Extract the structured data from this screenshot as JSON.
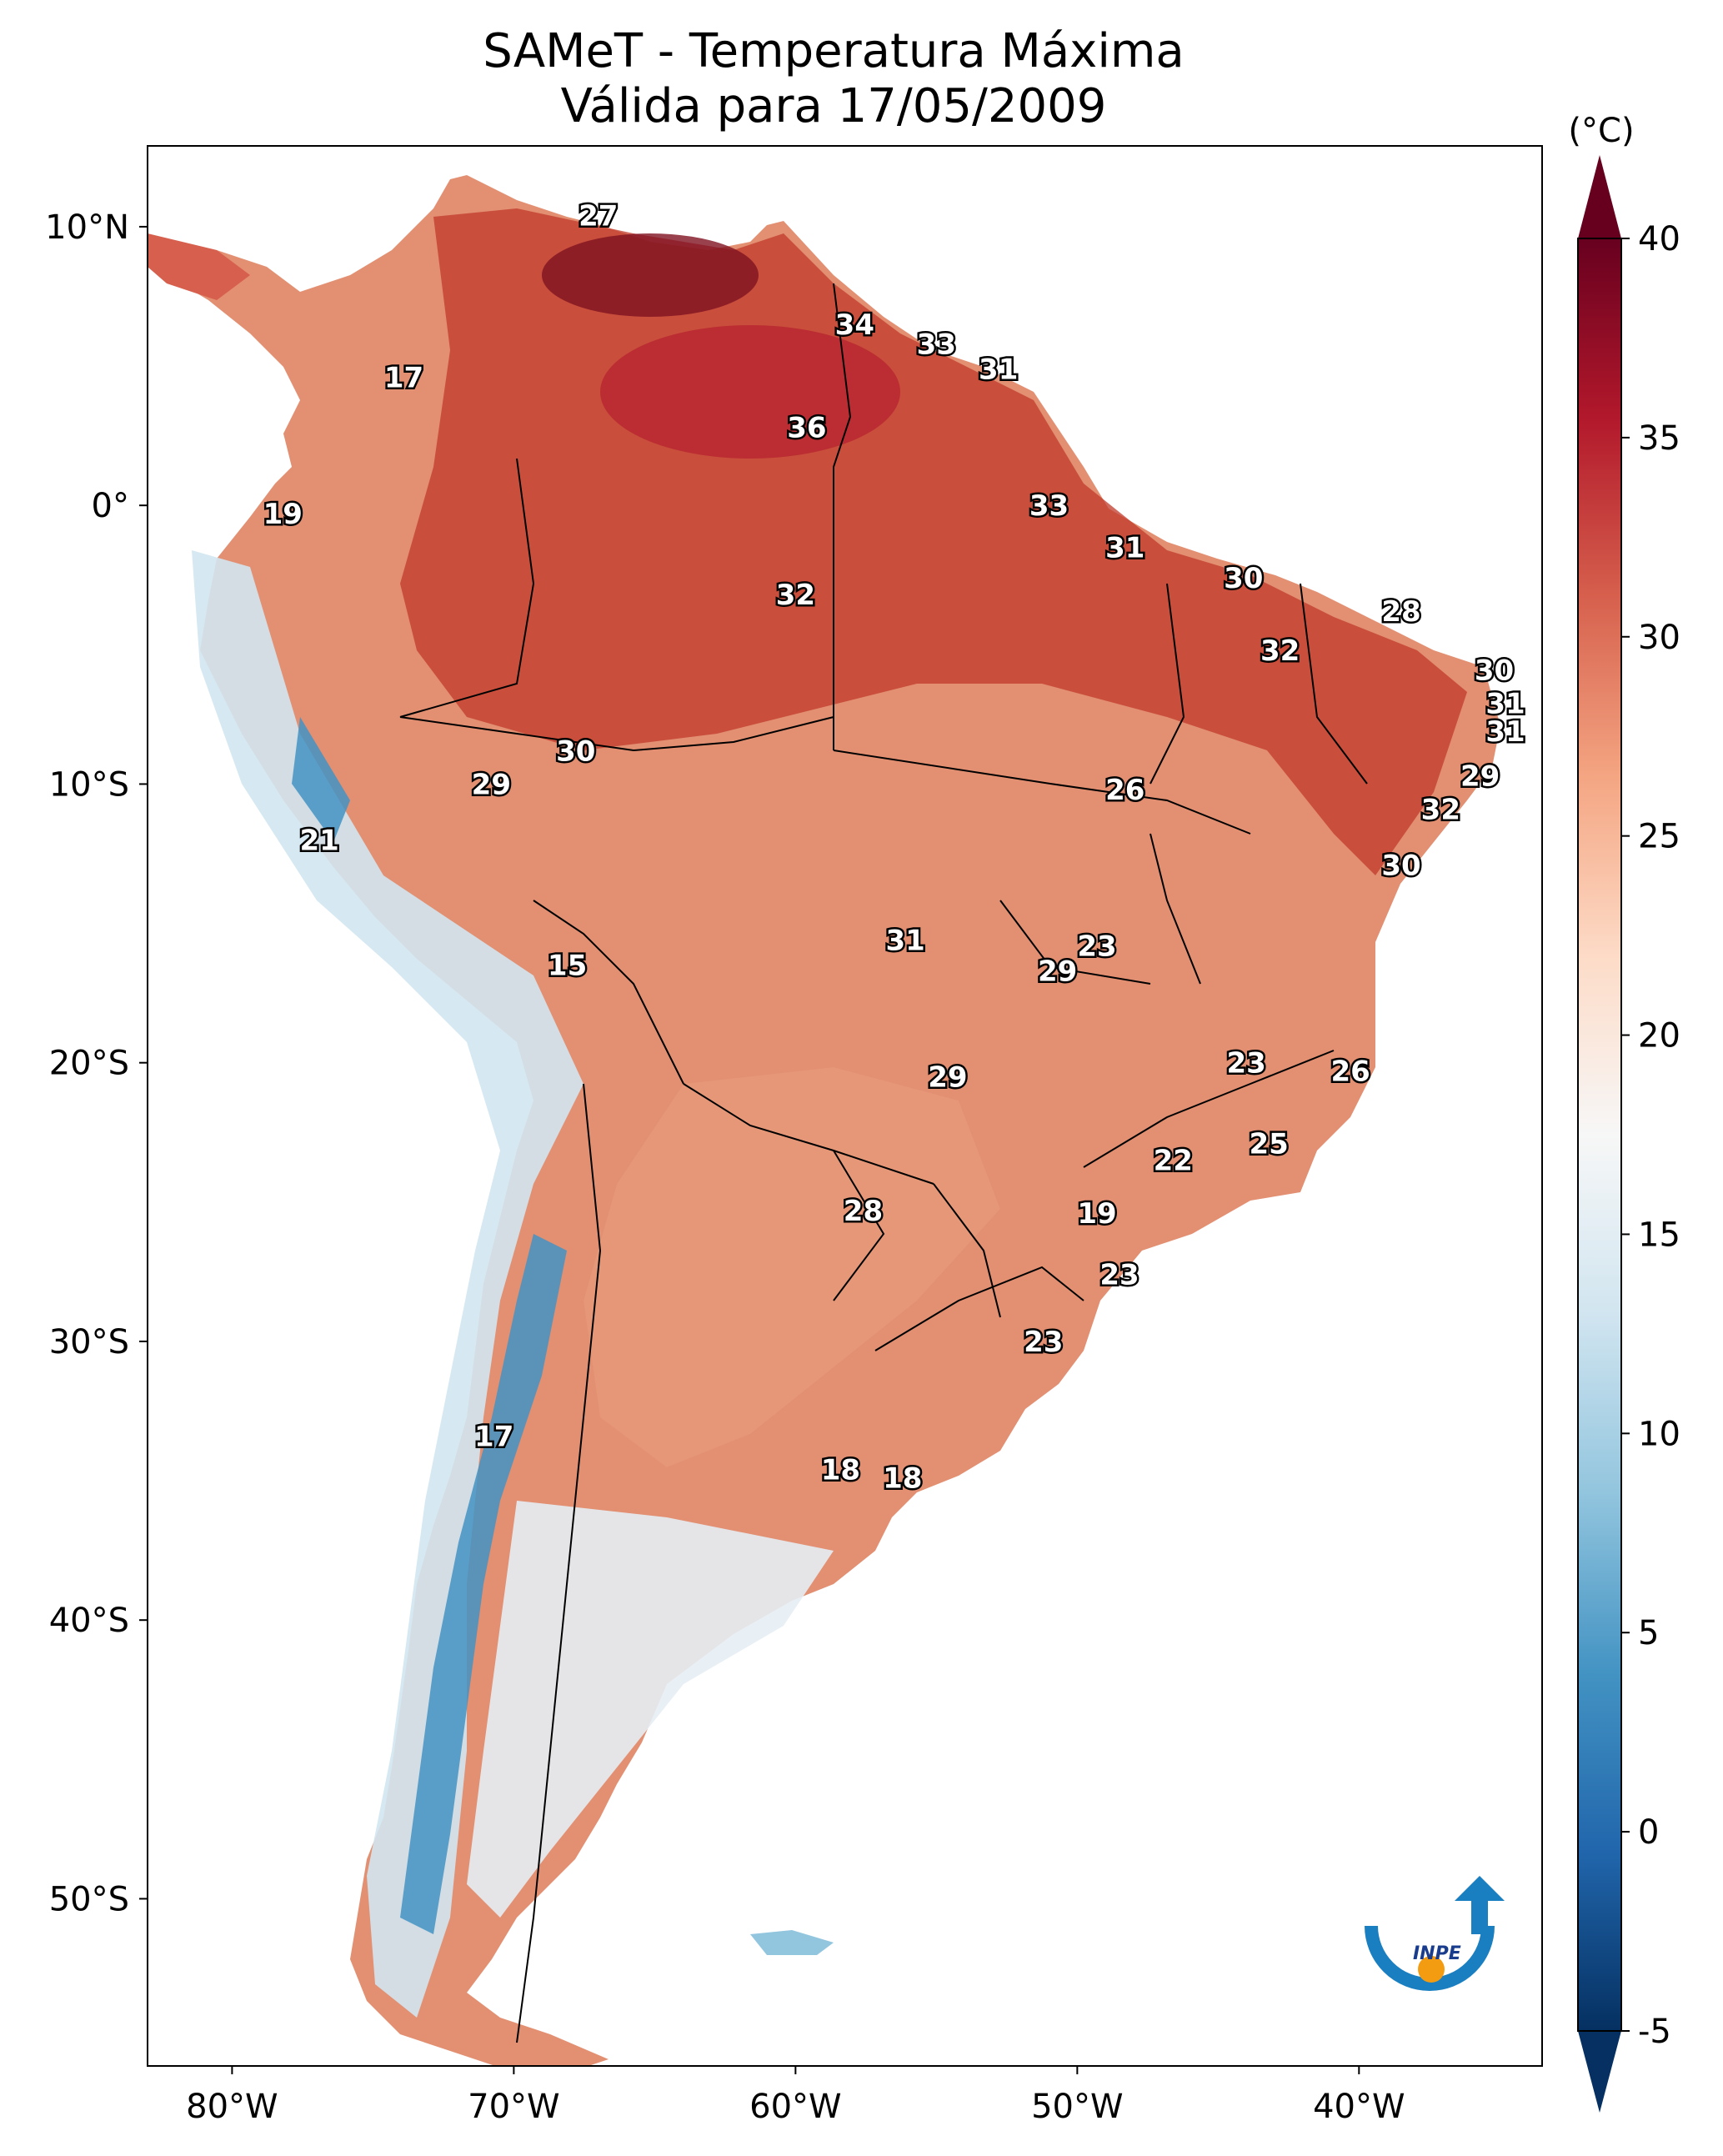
{
  "figure": {
    "title": "SAMeT - Temperatura Máxima",
    "subtitle": "Válida para 17/05/2009"
  },
  "map": {
    "extent": {
      "lon": [
        -83,
        -33.5
      ],
      "lat": [
        -56,
        12.9
      ]
    },
    "lat_ticks": [
      {
        "value": 10,
        "label": "10°N"
      },
      {
        "value": 0,
        "label": "0°"
      },
      {
        "value": -10,
        "label": "10°S"
      },
      {
        "value": -20,
        "label": "20°S"
      },
      {
        "value": -30,
        "label": "30°S"
      },
      {
        "value": -40,
        "label": "40°S"
      },
      {
        "value": -50,
        "label": "50°S"
      }
    ],
    "lon_ticks": [
      {
        "value": -80,
        "label": "80°W"
      },
      {
        "value": -70,
        "label": "70°W"
      },
      {
        "value": -60,
        "label": "60°W"
      },
      {
        "value": -50,
        "label": "50°W"
      },
      {
        "value": -40,
        "label": "40°W"
      }
    ],
    "station_labels": [
      {
        "lon": -67.0,
        "lat": 10.4,
        "value": "27"
      },
      {
        "lon": -57.9,
        "lat": 6.5,
        "value": "34"
      },
      {
        "lon": -55.0,
        "lat": 5.8,
        "value": "33"
      },
      {
        "lon": -52.8,
        "lat": 4.9,
        "value": "31"
      },
      {
        "lon": -73.9,
        "lat": 4.6,
        "value": "17"
      },
      {
        "lon": -59.6,
        "lat": 2.8,
        "value": "36"
      },
      {
        "lon": -51.0,
        "lat": 0.0,
        "value": "33"
      },
      {
        "lon": -78.2,
        "lat": -0.3,
        "value": "19"
      },
      {
        "lon": -48.3,
        "lat": -1.5,
        "value": "31"
      },
      {
        "lon": -44.1,
        "lat": -2.6,
        "value": "30"
      },
      {
        "lon": -60.0,
        "lat": -3.2,
        "value": "32"
      },
      {
        "lon": -38.5,
        "lat": -3.8,
        "value": "28"
      },
      {
        "lon": -42.8,
        "lat": -5.2,
        "value": "32"
      },
      {
        "lon": -35.2,
        "lat": -5.9,
        "value": "30"
      },
      {
        "lon": -34.8,
        "lat": -7.1,
        "value": "31"
      },
      {
        "lon": -34.8,
        "lat": -8.1,
        "value": "31"
      },
      {
        "lon": -67.8,
        "lat": -8.8,
        "value": "30"
      },
      {
        "lon": -35.7,
        "lat": -9.7,
        "value": "29"
      },
      {
        "lon": -70.8,
        "lat": -10.0,
        "value": "29"
      },
      {
        "lon": -48.3,
        "lat": -10.2,
        "value": "26"
      },
      {
        "lon": -37.1,
        "lat": -10.9,
        "value": "32"
      },
      {
        "lon": -76.9,
        "lat": -12.0,
        "value": "21"
      },
      {
        "lon": -38.5,
        "lat": -12.9,
        "value": "30"
      },
      {
        "lon": -49.3,
        "lat": -15.8,
        "value": "23"
      },
      {
        "lon": -56.1,
        "lat": -15.6,
        "value": "31"
      },
      {
        "lon": -50.7,
        "lat": -16.7,
        "value": "29"
      },
      {
        "lon": -68.1,
        "lat": -16.5,
        "value": "15"
      },
      {
        "lon": -44.0,
        "lat": -20.0,
        "value": "23"
      },
      {
        "lon": -40.3,
        "lat": -20.3,
        "value": "26"
      },
      {
        "lon": -54.6,
        "lat": -20.5,
        "value": "29"
      },
      {
        "lon": -43.2,
        "lat": -22.9,
        "value": "25"
      },
      {
        "lon": -46.6,
        "lat": -23.5,
        "value": "22"
      },
      {
        "lon": -57.6,
        "lat": -25.3,
        "value": "28"
      },
      {
        "lon": -49.3,
        "lat": -25.4,
        "value": "19"
      },
      {
        "lon": -48.5,
        "lat": -27.6,
        "value": "23"
      },
      {
        "lon": -51.2,
        "lat": -30.0,
        "value": "23"
      },
      {
        "lon": -70.7,
        "lat": -33.4,
        "value": "17"
      },
      {
        "lon": -58.4,
        "lat": -34.6,
        "value": "18"
      },
      {
        "lon": -56.2,
        "lat": -34.9,
        "value": "18"
      }
    ]
  },
  "colorbar": {
    "unit": "(°C)",
    "min": -5,
    "max": 40,
    "ticks": [
      {
        "value": 40,
        "label": "40"
      },
      {
        "value": 35,
        "label": "35"
      },
      {
        "value": 30,
        "label": "30"
      },
      {
        "value": 25,
        "label": "25"
      },
      {
        "value": 20,
        "label": "20"
      },
      {
        "value": 15,
        "label": "15"
      },
      {
        "value": 10,
        "label": "10"
      },
      {
        "value": 5,
        "label": "5"
      },
      {
        "value": 0,
        "label": "0"
      },
      {
        "value": -5,
        "label": "-5"
      }
    ],
    "colors": {
      "c_min": "#053061",
      "c_m4": "#2166ac",
      "c_m3": "#4393c3",
      "c_m2": "#92c5de",
      "c_m1": "#d1e5f0",
      "c_mid": "#f7f7f7",
      "c_p1": "#fddbc7",
      "c_p2": "#f4a582",
      "c_p3": "#d6604d",
      "c_p4": "#b2182b",
      "c_max": "#67001f"
    }
  },
  "logo": {
    "text": "INPE",
    "ring_color": "#1a7fc1",
    "dot_color": "#f39c12"
  }
}
